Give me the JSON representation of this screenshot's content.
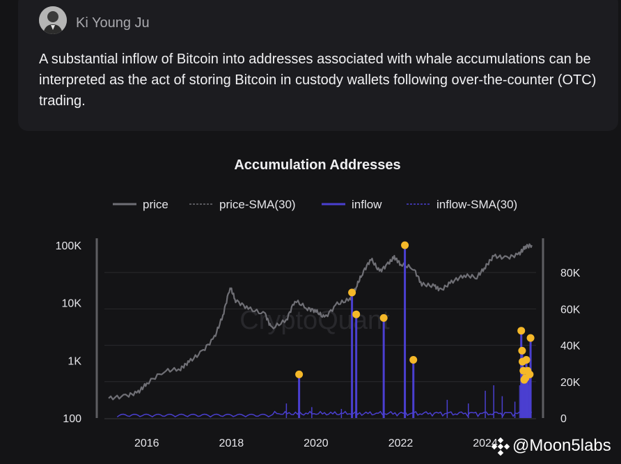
{
  "post": {
    "author": "Ki Young Ju",
    "text": "A substantial inflow of Bitcoin into addresses associated with whale accumulations can be interpreted as the act of storing Bitcoin in custody wallets following over-the-counter (OTC) trading."
  },
  "watermark": {
    "brand": "CryptoQuant",
    "handle": "@Moon5labs"
  },
  "colors": {
    "price": "#6f6f75",
    "inflow": "#4a3fd0",
    "marker": "#f5b829",
    "grid": "#2a2a2e"
  },
  "chart_data": {
    "type": "line",
    "title": "Accumulation Addresses",
    "legend": [
      "price",
      "price-SMA(30)",
      "inflow",
      "inflow-SMA(30)"
    ],
    "legend_position": "top",
    "x_ticks": [
      "2016",
      "2018",
      "2020",
      "2022",
      "2024"
    ],
    "y_left": {
      "scale": "log",
      "ticks": [
        "100",
        "1K",
        "10K",
        "100K"
      ],
      "range": [
        100,
        100000
      ]
    },
    "y_right": {
      "scale": "linear",
      "ticks": [
        "0",
        "20K",
        "40K",
        "60K",
        "80K"
      ],
      "range": [
        0,
        95000
      ]
    },
    "series": [
      {
        "name": "price",
        "axis": "left",
        "x": [
          2015.1,
          2015.5,
          2015.8,
          2016.0,
          2016.4,
          2016.8,
          2017.0,
          2017.3,
          2017.6,
          2017.8,
          2017.97,
          2018.1,
          2018.4,
          2018.8,
          2018.95,
          2019.3,
          2019.5,
          2019.8,
          2020.0,
          2020.2,
          2020.5,
          2020.8,
          2020.95,
          2021.1,
          2021.3,
          2021.5,
          2021.7,
          2021.85,
          2022.0,
          2022.3,
          2022.5,
          2022.8,
          2022.95,
          2023.2,
          2023.5,
          2023.8,
          2024.0,
          2024.2,
          2024.5,
          2024.8,
          2024.95,
          2025.1
        ],
        "values": [
          220,
          240,
          280,
          400,
          650,
          720,
          950,
          1400,
          2500,
          6000,
          19000,
          11000,
          8000,
          6300,
          3600,
          5000,
          11000,
          8000,
          7200,
          5500,
          9500,
          11500,
          19000,
          33000,
          58000,
          35000,
          47000,
          62000,
          47000,
          40000,
          21000,
          19500,
          16500,
          23000,
          30000,
          28000,
          42000,
          65000,
          60000,
          70000,
          95000,
          100000
        ]
      },
      {
        "name": "inflow",
        "axis": "right",
        "x": [
          2019.6,
          2020.85,
          2020.95,
          2021.6,
          2022.1,
          2022.3,
          2024.85,
          2024.87,
          2024.88,
          2024.9,
          2024.92,
          2024.95,
          2024.97,
          2025.0,
          2025.05,
          2025.07
        ],
        "values": [
          24000,
          69000,
          57000,
          55000,
          95000,
          32000,
          48000,
          37000,
          31000,
          26000,
          21000,
          22000,
          32000,
          26000,
          24000,
          44000
        ]
      }
    ]
  }
}
